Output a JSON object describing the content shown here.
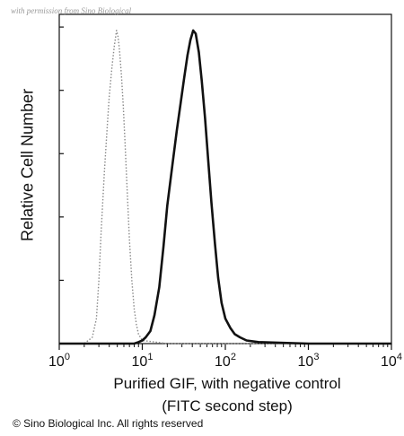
{
  "watermark": "with permission from Sino Biological",
  "copyright": "© Sino Biological Inc. All rights reserved",
  "chart_data": {
    "type": "line",
    "title": "",
    "xlabel_lines": [
      "Purified GIF, with negative control",
      "(FITC second step)"
    ],
    "ylabel": "Relative Cell Number",
    "x_scale": "log",
    "xlim": [
      1,
      10000
    ],
    "ylim": [
      0,
      100
    ],
    "x_ticks": [
      {
        "value": 1,
        "base": "10",
        "exp": "0"
      },
      {
        "value": 10,
        "base": "10",
        "exp": "1"
      },
      {
        "value": 100,
        "base": "10",
        "exp": "2"
      },
      {
        "value": 1000,
        "base": "10",
        "exp": "3"
      },
      {
        "value": 10000,
        "base": "10",
        "exp": "4"
      }
    ],
    "grid": false,
    "legend": "none",
    "series": [
      {
        "role": "negative control",
        "style": "dotted",
        "color": "#8a8a8a",
        "x": [
          1,
          2.0,
          2.5,
          2.8,
          3.0,
          3.2,
          3.5,
          3.8,
          4.0,
          4.3,
          4.6,
          4.9,
          5.1,
          5.3,
          5.6,
          5.9,
          6.2,
          6.6,
          7.0,
          7.5,
          8.0,
          8.5,
          9.0,
          10.0,
          20,
          100,
          10000
        ],
        "y": [
          0,
          0,
          2,
          8,
          20,
          36,
          55,
          70,
          79,
          88,
          95,
          100,
          98,
          94,
          86,
          76,
          64,
          48,
          33,
          20,
          11,
          6,
          3,
          1,
          0,
          0,
          0
        ]
      },
      {
        "role": "purified GIF",
        "style": "solid",
        "color": "#111111",
        "x": [
          1,
          5,
          8,
          9,
          10,
          11,
          12.5,
          14,
          16,
          18,
          20,
          23,
          26,
          29,
          32,
          35,
          38,
          41,
          44,
          48,
          52,
          57,
          62,
          68,
          75,
          82,
          90,
          100,
          115,
          130,
          150,
          180,
          250,
          1000,
          10000
        ],
        "y": [
          0,
          0,
          0,
          0.5,
          1,
          2,
          4,
          9,
          18,
          31,
          44,
          57,
          68,
          77,
          85,
          92,
          97,
          100,
          99,
          93,
          84,
          72,
          59,
          45,
          32,
          21,
          13,
          8,
          5,
          3,
          2,
          1,
          0.5,
          0,
          0
        ]
      }
    ]
  }
}
